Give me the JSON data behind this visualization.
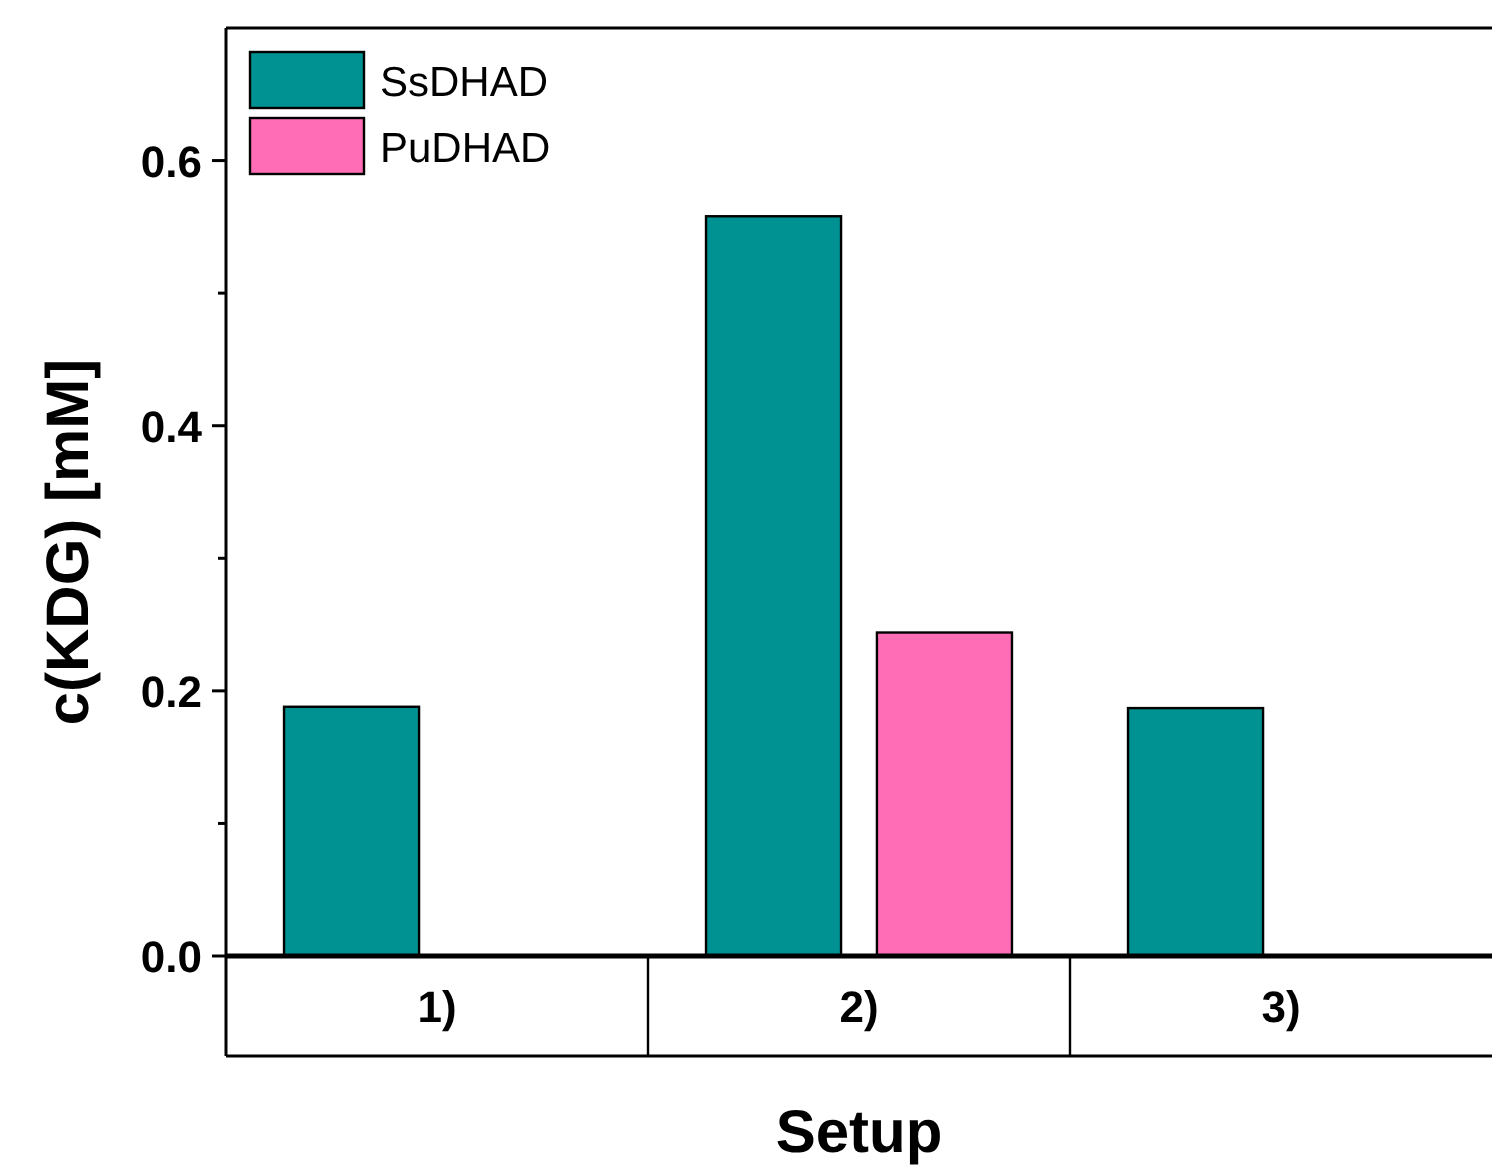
{
  "chart_data": {
    "type": "bar",
    "xlabel": "Setup",
    "ylabel": "c(KDG) [mM]",
    "categories": [
      "1)",
      "2)",
      "3)"
    ],
    "series": [
      {
        "name": "SsDHAD",
        "color": "#009292",
        "values": [
          0.188,
          0.558,
          0.187
        ]
      },
      {
        "name": "PuDHAD",
        "color": "#ff6db6",
        "values": [
          null,
          0.244,
          null
        ]
      }
    ],
    "ylim": [
      0,
      0.7
    ],
    "yticks": [
      {
        "value": 0,
        "label": "0.0"
      },
      {
        "value": 0.1,
        "label": null
      },
      {
        "value": 0.2,
        "label": "0.2"
      },
      {
        "value": 0.3,
        "label": null
      },
      {
        "value": 0.4,
        "label": "0.4"
      },
      {
        "value": 0.5,
        "label": null
      },
      {
        "value": 0.6,
        "label": "0.6"
      }
    ],
    "grid": false,
    "legend": "top left"
  }
}
